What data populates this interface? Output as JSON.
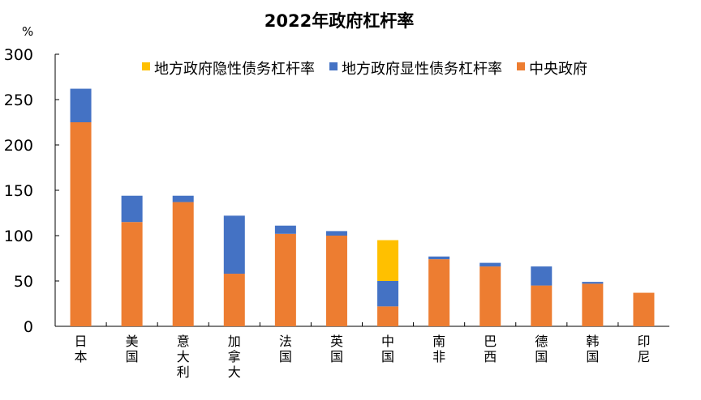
{
  "chart_data": {
    "type": "bar",
    "stacked": true,
    "title": "2022年政府杠杆率",
    "ylabel": "%",
    "ylim": [
      0,
      300
    ],
    "yticks": [
      0,
      50,
      100,
      150,
      200,
      250,
      300
    ],
    "grid": false,
    "legend_placement": "top-right",
    "categories": [
      "日本",
      "美国",
      "意大利",
      "加拿大",
      "法国",
      "英国",
      "中国",
      "南非",
      "巴西",
      "德国",
      "韩国",
      "印尼"
    ],
    "series": [
      {
        "name": "中央政府",
        "color": "#ED7D31",
        "values": [
          225,
          115,
          137,
          58,
          102,
          100,
          22,
          74,
          66,
          45,
          47,
          37
        ]
      },
      {
        "name": "地方政府显性债务杠杆率",
        "color": "#4472C4",
        "values": [
          37,
          29,
          7,
          64,
          9,
          5,
          28,
          3,
          4,
          21,
          2,
          0
        ]
      },
      {
        "name": "地方政府隐性债务杠杆率",
        "color": "#FFC000",
        "values": [
          0,
          0,
          0,
          0,
          0,
          0,
          45,
          0,
          0,
          0,
          0,
          0
        ]
      }
    ],
    "legend_order": [
      "地方政府隐性债务杠杆率",
      "地方政府显性债务杠杆率",
      "中央政府"
    ]
  }
}
